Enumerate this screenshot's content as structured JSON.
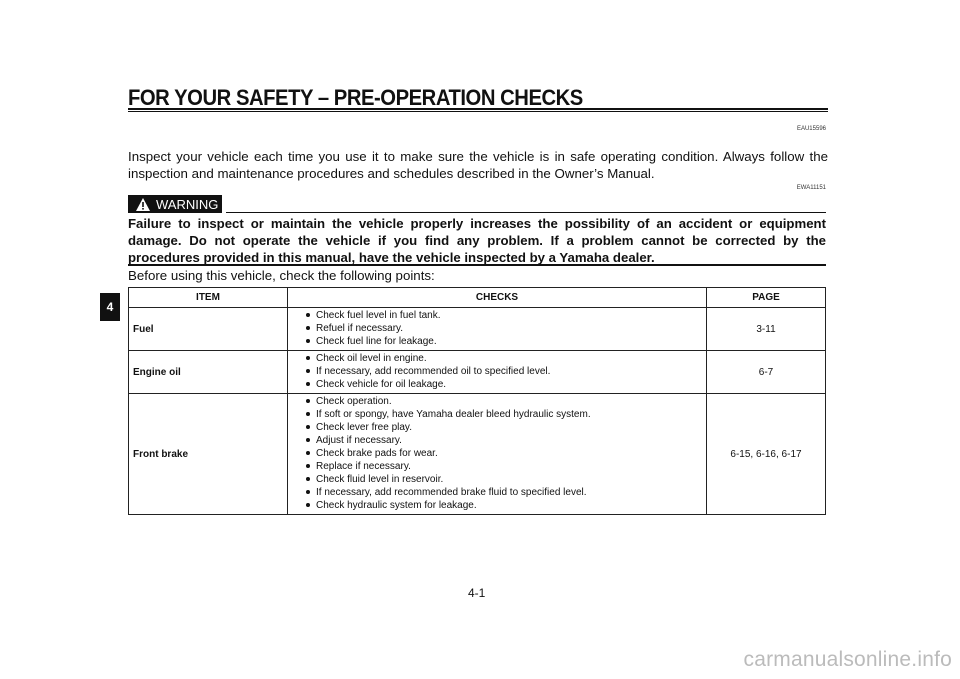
{
  "header": {
    "title": "FOR YOUR SAFETY – PRE-OPERATION CHECKS",
    "code1": "EAU15596",
    "code2": "EWA11151"
  },
  "intro": "Inspect your vehicle each time you use it to make sure the vehicle is in safe operating condition. Always follow the inspection and maintenance procedures and schedules described in the Owner’s Manual.",
  "warning": {
    "label": "WARNING",
    "icon": "warning-triangle-icon",
    "text": "Failure to inspect or maintain the vehicle properly increases the possibility of an accident or equipment damage. Do not operate the vehicle if you find any problem. If a problem cannot be corrected by the procedures provided in this manual, have the vehicle inspected by a Yamaha dealer."
  },
  "before": "Before using this vehicle, check the following points:",
  "chapter_tab": "4",
  "table": {
    "headers": [
      "ITEM",
      "CHECKS",
      "PAGE"
    ],
    "rows": [
      {
        "item": "Fuel",
        "checks": [
          "Check fuel level in fuel tank.",
          "Refuel if necessary.",
          "Check fuel line for leakage."
        ],
        "page": "3-11"
      },
      {
        "item": "Engine oil",
        "checks": [
          "Check oil level in engine.",
          "If necessary, add recommended oil to specified level.",
          "Check vehicle for oil leakage."
        ],
        "page": "6-7"
      },
      {
        "item": "Front brake",
        "checks": [
          "Check operation.",
          "If soft or spongy, have Yamaha dealer bleed hydraulic system.",
          "Check lever free play.",
          "Adjust if necessary.",
          "Check brake pads for wear.",
          "Replace if necessary.",
          "Check fluid level in reservoir.",
          "If necessary, add recommended brake fluid to specified level.",
          "Check hydraulic system for leakage."
        ],
        "page": "6-15, 6-16, 6-17"
      }
    ]
  },
  "page_number": "4-1",
  "watermark": "carmanualsonline.info"
}
